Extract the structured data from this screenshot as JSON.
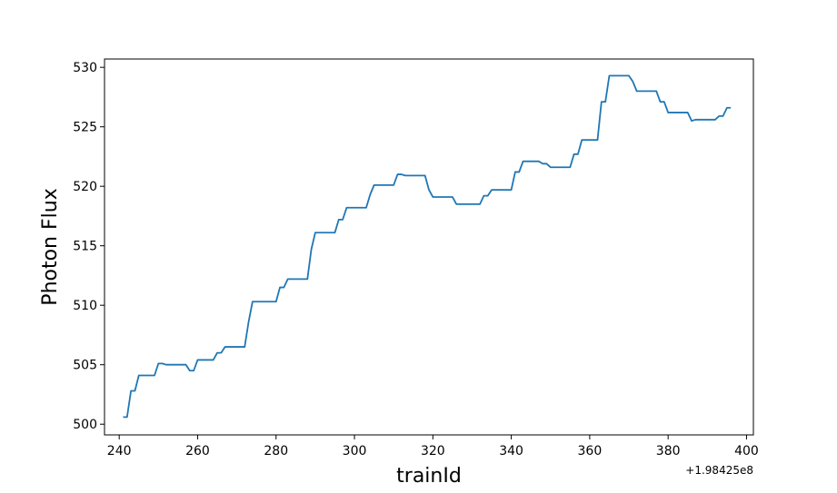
{
  "chart_data": {
    "type": "line",
    "xlabel": "trainId",
    "ylabel": "Photon Flux",
    "x_offset_label": "+1.98425e8",
    "xlim": [
      236.25,
      401.75
    ],
    "ylim": [
      499.1,
      530.7
    ],
    "xticks": [
      240,
      260,
      280,
      300,
      320,
      340,
      360,
      380,
      400
    ],
    "yticks": [
      500,
      505,
      510,
      515,
      520,
      525,
      530
    ],
    "grid": false,
    "line_color": "#1f77b4",
    "series": [
      {
        "x": [
          241,
          242,
          243,
          244,
          245,
          246,
          247,
          248,
          249,
          250,
          251,
          252,
          253,
          254,
          255,
          256,
          257,
          258,
          259,
          260,
          261,
          262,
          263,
          264,
          265,
          266,
          267,
          268,
          269,
          270,
          271,
          272,
          273,
          274,
          275,
          276,
          277,
          278,
          279,
          280,
          281,
          282,
          283,
          284,
          285,
          286,
          287,
          288,
          289,
          290,
          291,
          292,
          293,
          294,
          295,
          296,
          297,
          298,
          299,
          300,
          301,
          302,
          303,
          304,
          305,
          306,
          307,
          308,
          309,
          310,
          311,
          312,
          313,
          314,
          315,
          316,
          317,
          318,
          319,
          320,
          321,
          322,
          323,
          324,
          325,
          326,
          327,
          328,
          329,
          330,
          331,
          332,
          333,
          334,
          335,
          336,
          337,
          338,
          339,
          340,
          341,
          342,
          343,
          344,
          345,
          346,
          347,
          348,
          349,
          350,
          351,
          352,
          353,
          354,
          355,
          356,
          357,
          358,
          359,
          360,
          361,
          362,
          363,
          364,
          365,
          366,
          367,
          368,
          369,
          370,
          371,
          372,
          373,
          374,
          375,
          376,
          377,
          378,
          379,
          380,
          381,
          382,
          383,
          384,
          385,
          386,
          387,
          388,
          389,
          390,
          391,
          392,
          393,
          394,
          395,
          396
        ],
        "y": [
          500.6,
          500.6,
          502.8,
          502.8,
          504.1,
          504.1,
          504.1,
          504.1,
          504.1,
          505.1,
          505.1,
          505.0,
          505.0,
          505.0,
          505.0,
          505.0,
          505.0,
          504.5,
          504.5,
          505.4,
          505.4,
          505.4,
          505.4,
          505.4,
          506.0,
          506.0,
          506.5,
          506.5,
          506.5,
          506.5,
          506.5,
          506.5,
          508.6,
          510.3,
          510.3,
          510.3,
          510.3,
          510.3,
          510.3,
          510.3,
          511.5,
          511.5,
          512.2,
          512.2,
          512.2,
          512.2,
          512.2,
          512.2,
          514.7,
          516.1,
          516.1,
          516.1,
          516.1,
          516.1,
          516.1,
          517.2,
          517.2,
          518.2,
          518.2,
          518.2,
          518.2,
          518.2,
          518.2,
          519.3,
          520.1,
          520.1,
          520.1,
          520.1,
          520.1,
          520.1,
          521.0,
          521.0,
          520.9,
          520.9,
          520.9,
          520.9,
          520.9,
          520.9,
          519.7,
          519.1,
          519.1,
          519.1,
          519.1,
          519.1,
          519.1,
          518.5,
          518.5,
          518.5,
          518.5,
          518.5,
          518.5,
          518.5,
          519.2,
          519.2,
          519.7,
          519.7,
          519.7,
          519.7,
          519.7,
          519.7,
          521.2,
          521.2,
          522.1,
          522.1,
          522.1,
          522.1,
          522.1,
          521.9,
          521.9,
          521.6,
          521.6,
          521.6,
          521.6,
          521.6,
          521.6,
          522.7,
          522.7,
          523.9,
          523.9,
          523.9,
          523.9,
          523.9,
          527.1,
          527.1,
          529.3,
          529.3,
          529.3,
          529.3,
          529.3,
          529.3,
          528.8,
          528.0,
          528.0,
          528.0,
          528.0,
          528.0,
          528.0,
          527.1,
          527.1,
          526.2,
          526.2,
          526.2,
          526.2,
          526.2,
          526.2,
          525.5,
          525.6,
          525.6,
          525.6,
          525.6,
          525.6,
          525.6,
          525.9,
          525.9,
          526.6,
          526.6
        ]
      }
    ]
  }
}
